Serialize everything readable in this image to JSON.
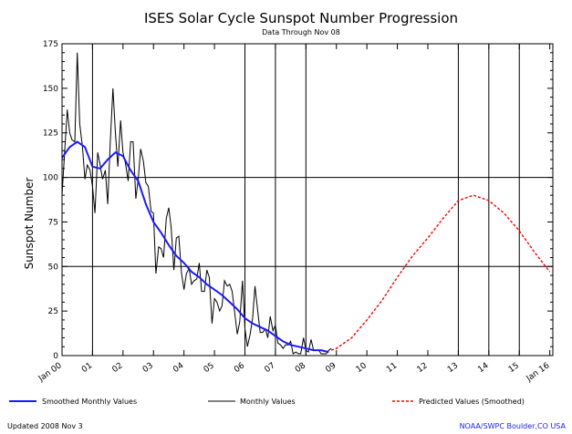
{
  "chart_data": {
    "type": "line",
    "title": "ISES Solar Cycle Sunspot Number Progression",
    "subtitle": "Data Through Nov 08",
    "ylabel": "Sunspot Number",
    "xlabel": "",
    "ylim": [
      0,
      175
    ],
    "yticks": [
      0,
      25,
      50,
      75,
      100,
      125,
      150,
      175
    ],
    "xlim": [
      2000,
      2016.1
    ],
    "xtick_labels": [
      {
        "year": 2000,
        "label": "Jan 00"
      },
      {
        "year": 2001,
        "label": "01"
      },
      {
        "year": 2002,
        "label": "02"
      },
      {
        "year": 2003,
        "label": "03"
      },
      {
        "year": 2004,
        "label": "04"
      },
      {
        "year": 2005,
        "label": "05"
      },
      {
        "year": 2006,
        "label": "06"
      },
      {
        "year": 2007,
        "label": "07"
      },
      {
        "year": 2008,
        "label": "08"
      },
      {
        "year": 2009,
        "label": "09"
      },
      {
        "year": 2010,
        "label": "10"
      },
      {
        "year": 2011,
        "label": "11"
      },
      {
        "year": 2012,
        "label": "12"
      },
      {
        "year": 2013,
        "label": "13"
      },
      {
        "year": 2014,
        "label": "14"
      },
      {
        "year": 2015,
        "label": "15"
      },
      {
        "year": 2016,
        "label": "Jan 16"
      }
    ],
    "gridlines_y": [
      50,
      100
    ],
    "gridlines_x": [
      2001,
      2006,
      2007,
      2008,
      2013,
      2014,
      2015
    ],
    "series": [
      {
        "name": "Monthly Values",
        "color": "#000000",
        "style": "solid-thin",
        "x": [
          2000.0,
          2000.08,
          2000.17,
          2000.25,
          2000.33,
          2000.42,
          2000.5,
          2000.58,
          2000.67,
          2000.75,
          2000.83,
          2000.92,
          2001.0,
          2001.08,
          2001.17,
          2001.25,
          2001.33,
          2001.42,
          2001.5,
          2001.58,
          2001.67,
          2001.75,
          2001.83,
          2001.92,
          2002.0,
          2002.08,
          2002.17,
          2002.25,
          2002.33,
          2002.42,
          2002.5,
          2002.58,
          2002.67,
          2002.75,
          2002.83,
          2002.92,
          2003.0,
          2003.08,
          2003.17,
          2003.25,
          2003.33,
          2003.42,
          2003.5,
          2003.58,
          2003.67,
          2003.75,
          2003.83,
          2003.92,
          2004.0,
          2004.08,
          2004.17,
          2004.25,
          2004.33,
          2004.42,
          2004.5,
          2004.58,
          2004.67,
          2004.75,
          2004.83,
          2004.92,
          2005.0,
          2005.08,
          2005.17,
          2005.25,
          2005.33,
          2005.42,
          2005.5,
          2005.58,
          2005.67,
          2005.75,
          2005.83,
          2005.92,
          2006.0,
          2006.08,
          2006.17,
          2006.25,
          2006.33,
          2006.42,
          2006.5,
          2006.58,
          2006.67,
          2006.75,
          2006.83,
          2006.92,
          2007.0,
          2007.08,
          2007.17,
          2007.25,
          2007.33,
          2007.42,
          2007.5,
          2007.58,
          2007.67,
          2007.75,
          2007.83,
          2007.92,
          2008.0,
          2008.08,
          2008.17,
          2008.25,
          2008.33,
          2008.42,
          2008.5,
          2008.58,
          2008.67,
          2008.75,
          2008.83
        ],
        "values": [
          90,
          113,
          138,
          125,
          121,
          120,
          170,
          130,
          117,
          99,
          107,
          104,
          95,
          80,
          114,
          107,
          99,
          104,
          85,
          119,
          150,
          125,
          106,
          132,
          114,
          108,
          98,
          120,
          120,
          88,
          99,
          116,
          109,
          97,
          95,
          81,
          80,
          46,
          61,
          60,
          55,
          77,
          83,
          72,
          48,
          66,
          67,
          46,
          37,
          46,
          49,
          40,
          42,
          43,
          52,
          36,
          36,
          48,
          44,
          18,
          32,
          30,
          25,
          28,
          42,
          39,
          40,
          36,
          23,
          12,
          19,
          42,
          15,
          5,
          12,
          21,
          39,
          25,
          13,
          13,
          15,
          10,
          22,
          14,
          17,
          7,
          6,
          4,
          6,
          6,
          8,
          1,
          2,
          1,
          1,
          10,
          3,
          2,
          9,
          3,
          3,
          3,
          1,
          1,
          1,
          3,
          4
        ]
      },
      {
        "name": "Smoothed Monthly Values",
        "color": "#1a1aff",
        "style": "solid-thick",
        "x": [
          2000.0,
          2000.25,
          2000.5,
          2000.75,
          2001.0,
          2001.25,
          2001.5,
          2001.75,
          2002.0,
          2002.25,
          2002.5,
          2002.75,
          2003.0,
          2003.25,
          2003.5,
          2003.75,
          2004.0,
          2004.25,
          2004.5,
          2004.75,
          2005.0,
          2005.25,
          2005.5,
          2005.75,
          2006.0,
          2006.25,
          2006.5,
          2006.75,
          2007.0,
          2007.25,
          2007.5,
          2007.75,
          2008.0,
          2008.25,
          2008.5,
          2008.75
        ],
        "values": [
          111,
          117,
          120,
          117,
          106,
          105,
          110,
          114,
          112,
          104,
          98,
          85,
          75,
          69,
          62,
          56,
          52,
          47,
          44,
          40,
          37,
          34,
          30,
          26,
          21,
          18,
          16,
          14,
          11,
          8,
          6,
          5,
          4,
          3,
          3,
          2
        ]
      },
      {
        "name": "Predicted Values (Smoothed)",
        "color": "#ff0000",
        "style": "dashed",
        "x": [
          2008.83,
          2009.0,
          2009.5,
          2010.0,
          2010.5,
          2011.0,
          2011.5,
          2012.0,
          2012.5,
          2013.0,
          2013.5,
          2014.0,
          2014.5,
          2015.0,
          2015.5,
          2016.0
        ],
        "values": [
          3,
          4,
          10,
          20,
          31,
          44,
          56,
          66,
          77,
          87,
          90,
          87,
          80,
          70,
          58,
          47
        ]
      }
    ],
    "legend": {
      "placement": "bottom",
      "items": [
        {
          "label": "Smoothed Monthly Values",
          "color": "#1a1aff"
        },
        {
          "label": "Monthly Values",
          "color": "#000000"
        },
        {
          "label": "Predicted Values (Smoothed)",
          "color": "#ff0000"
        }
      ]
    }
  },
  "footer": {
    "updated": "Updated 2008 Nov 3",
    "credit": "NOAA/SWPC Boulder,CO USA"
  }
}
